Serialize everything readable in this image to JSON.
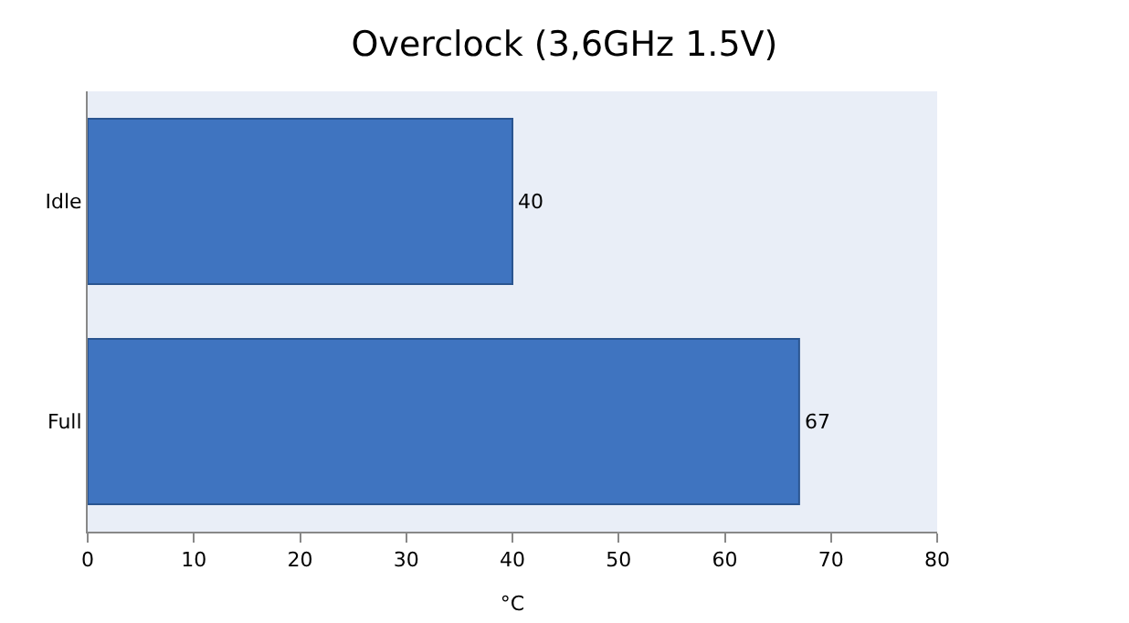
{
  "chart_data": {
    "type": "bar",
    "orientation": "horizontal",
    "title": "Overclock (3,6GHz 1.5V)",
    "xlabel": "°C",
    "categories": [
      "Idle",
      "Full"
    ],
    "series": [
      {
        "color": "#3f74c0",
        "values": [
          40,
          67
        ]
      }
    ],
    "xlim": [
      0,
      80
    ],
    "xticks": [
      0,
      10,
      20,
      30,
      40,
      50,
      60,
      70,
      80
    ],
    "data_labels": true,
    "grid": false
  }
}
